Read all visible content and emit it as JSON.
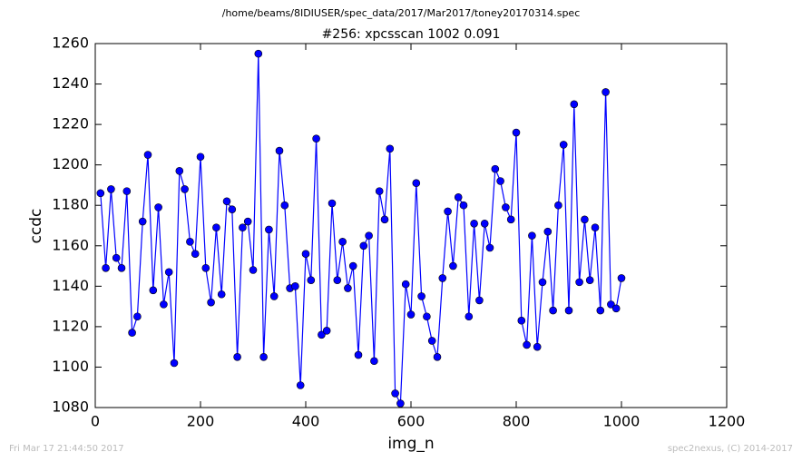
{
  "chart_data": {
    "type": "line",
    "title": "/home/beams/8IDIUSER/spec_data/2017/Mar2017/toney20170314.spec",
    "subtitle": "#256: xpcsscan 1002 0.091",
    "xlabel": "img_n",
    "ylabel": "ccdc",
    "footer_left": "Fri Mar 17 21:44:50 2017",
    "footer_right": "spec2nexus, (C) 2014-2017",
    "x": [
      10,
      20,
      30,
      40,
      50,
      60,
      70,
      80,
      90,
      100,
      110,
      120,
      130,
      140,
      150,
      160,
      170,
      180,
      190,
      200,
      210,
      220,
      230,
      240,
      250,
      260,
      270,
      280,
      290,
      300,
      310,
      320,
      330,
      340,
      350,
      360,
      370,
      380,
      390,
      400,
      410,
      420,
      430,
      440,
      450,
      460,
      470,
      480,
      490,
      500,
      510,
      520,
      530,
      540,
      550,
      560,
      570,
      580,
      590,
      600,
      610,
      620,
      630,
      640,
      650,
      660,
      670,
      680,
      690,
      700,
      710,
      720,
      730,
      740,
      750,
      760,
      770,
      780,
      790,
      800,
      810,
      820,
      830,
      840,
      850,
      860,
      870,
      880,
      890,
      900,
      910,
      920,
      930,
      940,
      950,
      960,
      970,
      980,
      990,
      1000
    ],
    "series": [
      {
        "name": "ccdc",
        "color": "#0000ff",
        "values": [
          1186,
          1149,
          1188,
          1154,
          1149,
          1187,
          1117,
          1125,
          1172,
          1205,
          1138,
          1179,
          1131,
          1147,
          1102,
          1197,
          1188,
          1162,
          1156,
          1204,
          1149,
          1132,
          1169,
          1136,
          1182,
          1178,
          1105,
          1169,
          1172,
          1148,
          1255,
          1105,
          1168,
          1135,
          1207,
          1180,
          1139,
          1140,
          1091,
          1156,
          1143,
          1213,
          1116,
          1118,
          1181,
          1143,
          1162,
          1139,
          1150,
          1106,
          1160,
          1165,
          1103,
          1187,
          1173,
          1208,
          1087,
          1082,
          1141,
          1126,
          1191,
          1135,
          1125,
          1113,
          1105,
          1144,
          1177,
          1150,
          1184,
          1180,
          1125,
          1171,
          1133,
          1171,
          1159,
          1198,
          1192,
          1179,
          1173,
          1216,
          1123,
          1111,
          1165,
          1110,
          1142,
          1167,
          1128,
          1180,
          1210,
          1128,
          1230,
          1142,
          1173,
          1143,
          1169,
          1128,
          1236,
          1131,
          1129,
          1144
        ]
      }
    ],
    "xlim": [
      0,
      1200
    ],
    "xticks": [
      0,
      200,
      400,
      600,
      800,
      1000,
      1200
    ],
    "ylim": [
      1080,
      1260
    ],
    "yticks": [
      1080,
      1100,
      1120,
      1140,
      1160,
      1180,
      1200,
      1220,
      1240,
      1260
    ],
    "grid": false
  }
}
